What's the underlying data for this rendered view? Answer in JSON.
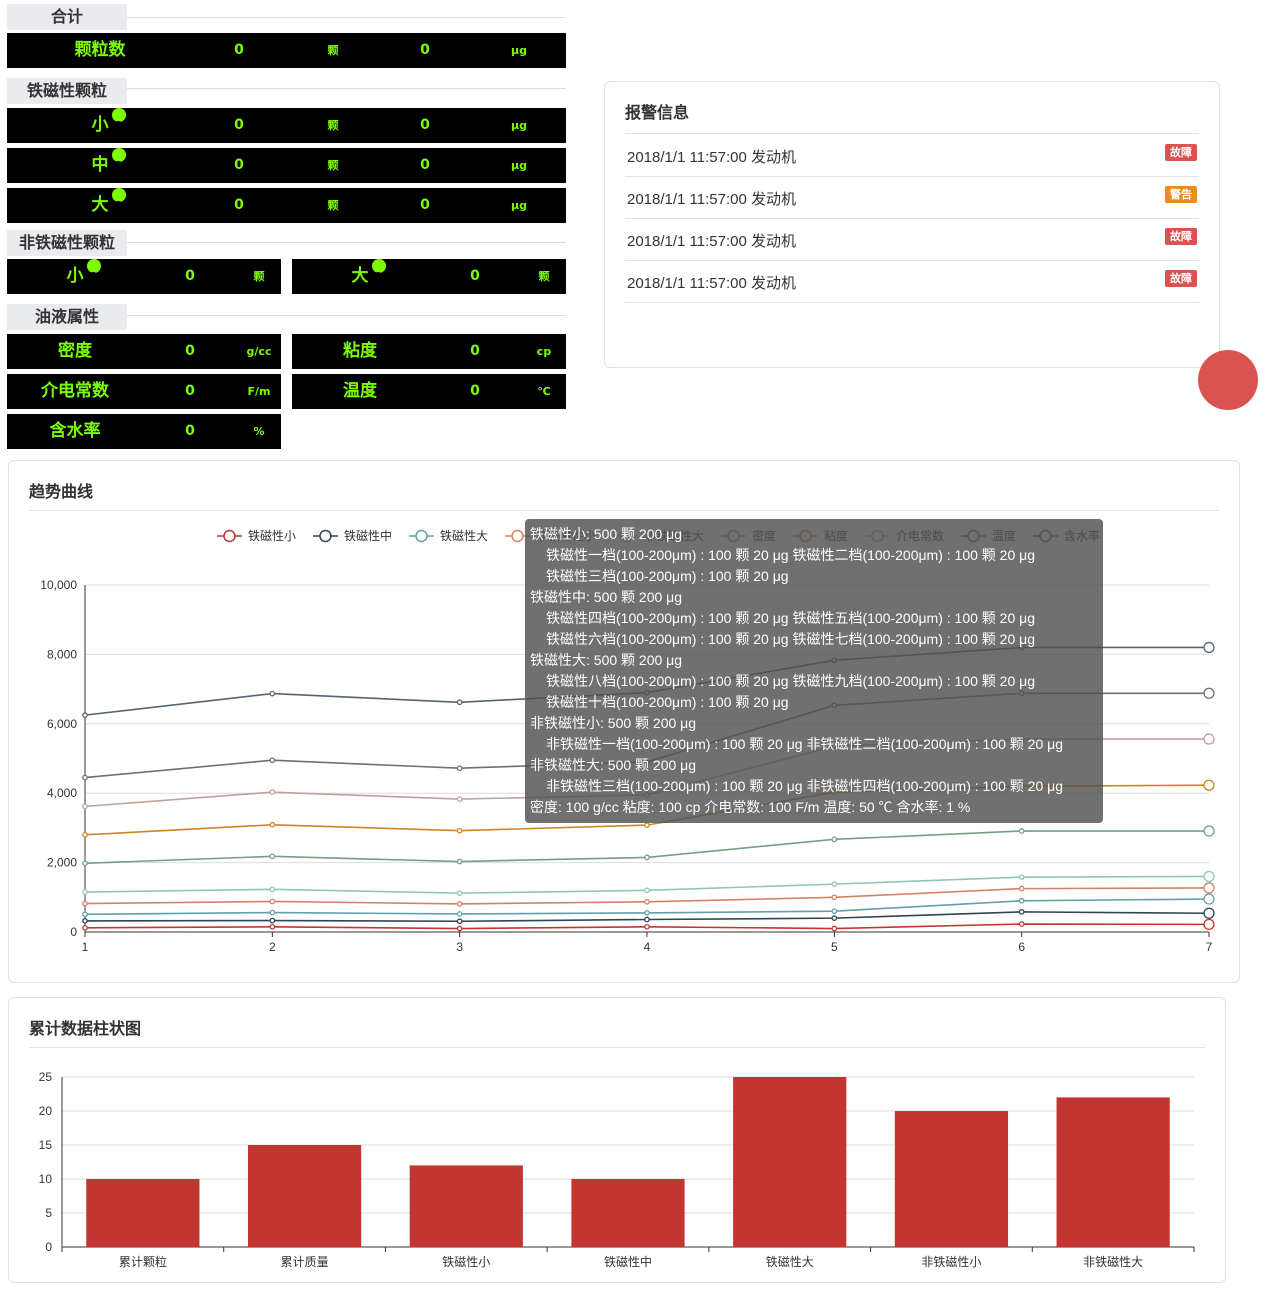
{
  "summary": {
    "total_title": "合计",
    "total_rows": [
      {
        "label": "颗粒数",
        "count": "0",
        "count_unit": "颗",
        "mass": "0",
        "mass_unit": "μg"
      }
    ],
    "ferro_title": "铁磁性颗粒",
    "ferro_rows": [
      {
        "label": "小",
        "count": "0",
        "count_unit": "颗",
        "mass": "0",
        "mass_unit": "μg"
      },
      {
        "label": "中",
        "count": "0",
        "count_unit": "颗",
        "mass": "0",
        "mass_unit": "μg"
      },
      {
        "label": "大",
        "count": "0",
        "count_unit": "颗",
        "mass": "0",
        "mass_unit": "μg"
      }
    ],
    "nonferro_title": "非铁磁性颗粒",
    "nonferro_cells": [
      {
        "label": "小",
        "value": "0",
        "unit": "颗"
      },
      {
        "label": "大",
        "value": "0",
        "unit": "颗"
      }
    ],
    "oil_title": "油液属性",
    "oil_cells": [
      {
        "label": "密度",
        "value": "0",
        "unit": "g/cc"
      },
      {
        "label": "粘度",
        "value": "0",
        "unit": "cp"
      },
      {
        "label": "介电常数",
        "value": "0",
        "unit": "F/m"
      },
      {
        "label": "温度",
        "value": "0",
        "unit": "℃"
      },
      {
        "label": "含水率",
        "value": "0",
        "unit": "%"
      }
    ],
    "help_glyph": "?"
  },
  "alarm": {
    "title": "报警信息",
    "items": [
      {
        "text": "2018/1/1 11:57:00 发动机",
        "badge": "故障",
        "badge_color": "#d9534f"
      },
      {
        "text": "2018/1/1 11:57:00 发动机",
        "badge": "警告",
        "badge_color": "#ee8a23"
      },
      {
        "text": "2018/1/1 11:57:00 发动机",
        "badge": "故障",
        "badge_color": "#d9534f"
      },
      {
        "text": "2018/1/1 11:57:00 发动机",
        "badge": "故障",
        "badge_color": "#d9534f"
      }
    ]
  },
  "trend": {
    "title": "趋势曲线",
    "tooltip_lines": [
      {
        "text": "铁磁性小: 500 颗 200 μg",
        "sub": false
      },
      {
        "text": "铁磁性一档(100-200μm) : 100 颗 20 μg    铁磁性二档(100-200μm) : 100 颗 20 μg",
        "sub": true
      },
      {
        "text": "铁磁性三档(100-200μm) : 100 颗 20 μg",
        "sub": true
      },
      {
        "text": "铁磁性中: 500 颗 200 μg",
        "sub": false
      },
      {
        "text": "铁磁性四档(100-200μm) : 100 颗 20 μg    铁磁性五档(100-200μm) : 100 颗 20 μg",
        "sub": true
      },
      {
        "text": "铁磁性六档(100-200μm) : 100 颗 20 μg    铁磁性七档(100-200μm) : 100 颗 20 μg",
        "sub": true
      },
      {
        "text": "铁磁性大: 500 颗 200 μg",
        "sub": false
      },
      {
        "text": "铁磁性八档(100-200μm) : 100 颗 20 μg    铁磁性九档(100-200μm) : 100 颗 20 μg",
        "sub": true
      },
      {
        "text": "铁磁性十档(100-200μm) : 100 颗 20 μg",
        "sub": true
      },
      {
        "text": "非铁磁性小: 500 颗 200 μg",
        "sub": false
      },
      {
        "text": "非铁磁性一档(100-200μm) : 100 颗 20 μg    非铁磁性二档(100-200μm) : 100 颗 20 μg",
        "sub": true
      },
      {
        "text": "非铁磁性大: 500 颗 200 μg",
        "sub": false
      },
      {
        "text": "非铁磁性三档(100-200μm) : 100 颗 20 μg    非铁磁性四档(100-200μm) : 100 颗 20 μg",
        "sub": true
      },
      {
        "text": "密度: 100 g/cc     粘度: 100 cp     介电常数: 100 F/m      温度: 50 ℃      含水率: 1 %",
        "sub": false
      }
    ]
  },
  "bars": {
    "title": "累计数据柱状图"
  },
  "chart_data": [
    {
      "type": "line",
      "x": [
        1,
        2,
        3,
        4,
        5,
        6,
        7
      ],
      "ylim": [
        0,
        10000
      ],
      "yticks": [
        0,
        2000,
        4000,
        6000,
        8000,
        10000
      ],
      "ytick_labels": [
        "0",
        "2,000",
        "4,000",
        "6,000",
        "8,000",
        "10,000"
      ],
      "grid": true,
      "legend_position": "top-center",
      "series": [
        {
          "name": "铁磁性小",
          "color": "#c23531",
          "values": [
            120,
            150,
            100,
            150,
            100,
            230,
            220
          ]
        },
        {
          "name": "铁磁性中",
          "color": "#2f4554",
          "values": [
            320,
            330,
            310,
            360,
            400,
            580,
            540
          ]
        },
        {
          "name": "铁磁性大",
          "color": "#61a0a8",
          "values": [
            510,
            560,
            520,
            550,
            600,
            900,
            950
          ]
        },
        {
          "name": "非铁磁性小",
          "color": "#d48265",
          "values": [
            820,
            880,
            810,
            870,
            1000,
            1250,
            1270
          ]
        },
        {
          "name": "非铁磁性大",
          "color": "#91c7ae",
          "values": [
            1150,
            1230,
            1120,
            1200,
            1380,
            1580,
            1600
          ]
        },
        {
          "name": "密度",
          "color": "#749f83",
          "values": [
            1980,
            2180,
            2030,
            2150,
            2670,
            2910,
            2910
          ]
        },
        {
          "name": "粘度",
          "color": "#ca8622",
          "values": [
            2800,
            3090,
            2920,
            3080,
            4030,
            4200,
            4230
          ]
        },
        {
          "name": "介电常数",
          "color": "#bda29a",
          "values": [
            3620,
            4030,
            3830,
            3950,
            5350,
            5560,
            5560
          ]
        },
        {
          "name": "温度",
          "color": "#6e7074",
          "values": [
            4450,
            4950,
            4720,
            4900,
            6530,
            6880,
            6880
          ]
        },
        {
          "name": "含水率",
          "color": "#546570",
          "values": [
            6250,
            6870,
            6620,
            6900,
            7830,
            8200,
            8200
          ]
        }
      ]
    },
    {
      "type": "bar",
      "categories": [
        "累计颗粒",
        "累计质量",
        "铁磁性小",
        "铁磁性中",
        "铁磁性大",
        "非铁磁性小",
        "非铁磁性大"
      ],
      "values": [
        10,
        15,
        12,
        10,
        25,
        20,
        22
      ],
      "ylim": [
        0,
        25
      ],
      "yticks": [
        0,
        5,
        10,
        15,
        20,
        25
      ],
      "grid": true,
      "color": "#c23531"
    }
  ]
}
